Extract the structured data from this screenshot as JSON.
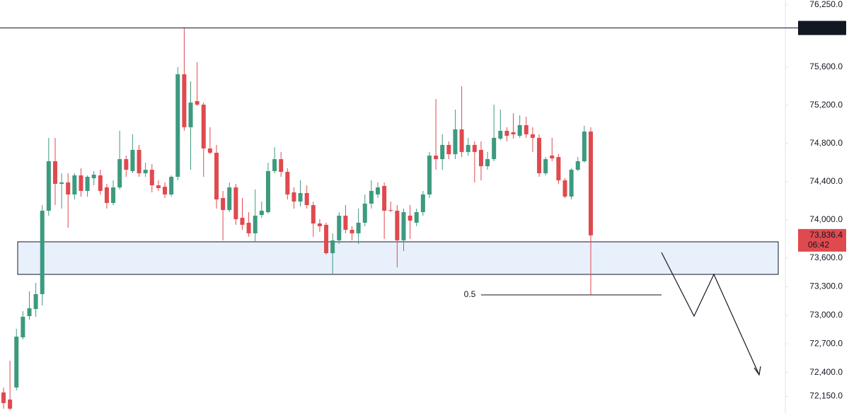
{
  "chart_data": {
    "type": "candlestick",
    "up_color": "#3d9a7f",
    "down_color": "#df4a4f",
    "ylim": [
      71976,
      76302
    ],
    "yticks": [
      {
        "value": 76250,
        "label": "76,250.0"
      },
      {
        "value": 75600,
        "label": "75,600.0"
      },
      {
        "value": 75200,
        "label": "75,200.0"
      },
      {
        "value": 74800,
        "label": "74,800.0"
      },
      {
        "value": 74400,
        "label": "74,400.0"
      },
      {
        "value": 74000,
        "label": "74,000.0"
      },
      {
        "value": 73600,
        "label": "73,600.0"
      },
      {
        "value": 73300,
        "label": "73,300.0"
      },
      {
        "value": 73000,
        "label": "73,000.0"
      },
      {
        "value": 72700,
        "label": "72,700.0"
      },
      {
        "value": 72400,
        "label": "72,400.0"
      },
      {
        "value": 72150,
        "label": "72,150.0"
      }
    ],
    "open": [
      72191,
      72117,
      72243,
      72769,
      72991,
      73065,
      73221,
      74095,
      74613,
      74376,
      74391,
      74265,
      74465,
      74302,
      74435,
      74465,
      74339,
      74176,
      74339,
      74635,
      74510,
      74732,
      74487,
      74524,
      74361,
      74346,
      74265,
      74450,
      75524,
      74969,
      75243,
      75206,
      74747,
      74702,
      74228,
      74102,
      74339,
      74021,
      73969,
      73858,
      74050,
      74080,
      74510,
      74635,
      74502,
      74287,
      74191,
      74280,
      74154,
      73961,
      73947,
      73650,
      73784,
      74043,
      73895,
      73858,
      73969,
      74169,
      74265,
      74354,
      74102,
      74095,
      73784,
      74043,
      73969,
      74080,
      74265,
      74672,
      74635,
      74784,
      74687,
      74947,
      74710,
      74784,
      74732,
      74561,
      74635,
      74850,
      74932,
      74917,
      74880,
      74991,
      74895,
      74858,
      74487,
      74672,
      74657,
      74413,
      74243,
      74524,
      74613,
      74924
    ],
    "high": [
      72243,
      72524,
      72858,
      73043,
      73250,
      73339,
      74154,
      74858,
      74858,
      74487,
      74487,
      74487,
      74539,
      74465,
      74510,
      74524,
      74376,
      74413,
      74932,
      74672,
      74895,
      74784,
      74598,
      74583,
      74413,
      74391,
      74465,
      75598,
      76006,
      75450,
      75650,
      75228,
      74969,
      74784,
      74302,
      74391,
      74376,
      74228,
      74080,
      74317,
      74191,
      74598,
      74761,
      74710,
      74539,
      74339,
      74413,
      74361,
      74191,
      74006,
      73969,
      73858,
      74080,
      74154,
      73932,
      74117,
      74265,
      74413,
      74391,
      74391,
      74191,
      74154,
      74117,
      74154,
      74117,
      74302,
      74710,
      75265,
      74895,
      74821,
      75154,
      75398,
      74858,
      74821,
      74821,
      74710,
      75206,
      75154,
      74969,
      75117,
      75095,
      75080,
      74969,
      74895,
      74657,
      74858,
      74687,
      74435,
      74539,
      74657,
      74984,
      74969
    ],
    "low": [
      72021,
      72006,
      72213,
      72747,
      72954,
      72984,
      73102,
      74043,
      74154,
      74117,
      73917,
      74213,
      74243,
      74243,
      74361,
      74265,
      74117,
      74154,
      74317,
      74450,
      74487,
      74450,
      74450,
      74287,
      74302,
      74228,
      74243,
      74413,
      74932,
      74524,
      75191,
      74450,
      74687,
      74117,
      73784,
      74080,
      73947,
      73895,
      73821,
      73769,
      74021,
      74065,
      74487,
      74450,
      74213,
      74117,
      74139,
      74117,
      73821,
      73873,
      73635,
      73428,
      73747,
      73858,
      73784,
      73747,
      73932,
      74117,
      74228,
      73799,
      74080,
      73502,
      73673,
      73799,
      73932,
      74043,
      74228,
      74524,
      74524,
      74635,
      74635,
      74657,
      74672,
      74391,
      74413,
      74524,
      74613,
      74835,
      74821,
      74850,
      74858,
      74858,
      74710,
      74450,
      74465,
      74613,
      74376,
      74228,
      74213,
      74510,
      74598,
      73213
    ],
    "close": [
      72080,
      72021,
      72776,
      72984,
      73073,
      73221,
      74095,
      74613,
      74376,
      74391,
      74265,
      74465,
      74302,
      74450,
      74472,
      74302,
      74176,
      74339,
      74635,
      74524,
      74732,
      74487,
      74524,
      74361,
      74332,
      74265,
      74450,
      75524,
      74969,
      75228,
      75206,
      74747,
      74702,
      74213,
      74102,
      74339,
      74006,
      73947,
      73858,
      74043,
      74095,
      74510,
      74635,
      74502,
      74265,
      74191,
      74280,
      74154,
      73961,
      73932,
      73650,
      73784,
      74043,
      73895,
      73858,
      73969,
      74169,
      74302,
      74339,
      74095,
      74095,
      73784,
      74080,
      73991,
      74080,
      74265,
      74672,
      74635,
      74784,
      74687,
      74947,
      74710,
      74784,
      74710,
      74561,
      74635,
      74858,
      74932,
      74880,
      74895,
      74991,
      74895,
      74858,
      74487,
      74635,
      74643,
      74413,
      74243,
      74524,
      74613,
      74924,
      73836.4
    ],
    "price_line": {
      "value": 76009.2,
      "label": "76,009.2"
    },
    "last_price": {
      "value": 73836.4,
      "label": "73,836.4"
    },
    "countdown": "06:42",
    "zone": [
      73428,
      73769
    ],
    "fib_level": {
      "value": 73213,
      "label": "0.5"
    }
  }
}
